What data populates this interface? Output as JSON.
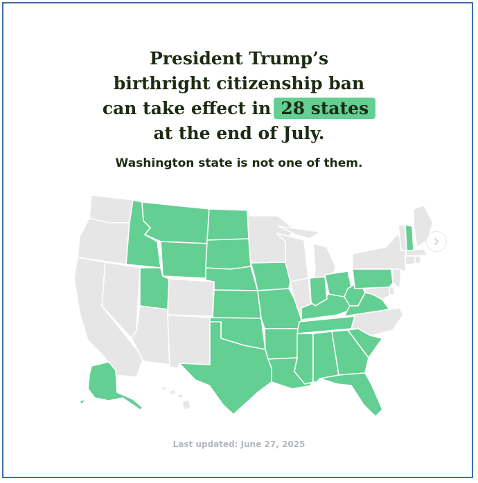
{
  "headline": {
    "line1": "President Trump’s",
    "line2": "birthright citizenship ban",
    "line3_prefix": "can take effect in",
    "line3_highlight": "28 states",
    "line4": "at the end of July."
  },
  "subheadline": "Washington state is not one of them.",
  "footer": "Last updated: June 27, 2025",
  "legend_colors": {
    "ban_can_take_effect": "#63cf92",
    "ban_blocked": "#e6e6e6"
  },
  "map": {
    "states_where_ban_can_take_effect": [
      "ID",
      "MT",
      "WY",
      "ND",
      "SD",
      "NE",
      "KS",
      "OK",
      "TX",
      "UT",
      "IA",
      "MO",
      "AR",
      "LA",
      "MS",
      "AL",
      "GA",
      "FL",
      "SC",
      "TN",
      "KY",
      "IN",
      "OH",
      "WV",
      "VA",
      "PA",
      "NH",
      "AK"
    ],
    "states_where_ban_is_blocked": [
      "WA",
      "OR",
      "CA",
      "NV",
      "AZ",
      "CO",
      "NM",
      "MN",
      "WI",
      "IL",
      "MI",
      "NC",
      "NY",
      "VT",
      "ME",
      "MA",
      "CT",
      "RI",
      "NJ",
      "DE",
      "MD",
      "HI"
    ]
  },
  "icons": {
    "next": "chevron-right-icon"
  }
}
